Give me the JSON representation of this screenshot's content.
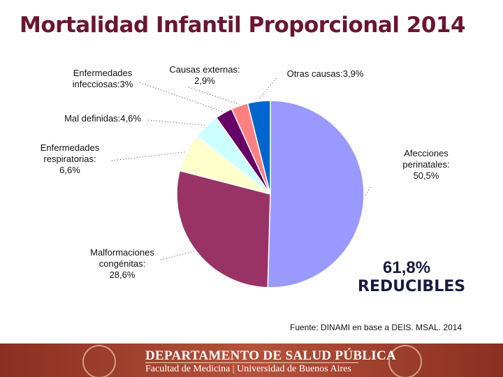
{
  "title": "Mortalidad Infantil Proporcional 2014",
  "chart_data": {
    "type": "pie",
    "values": [
      50.5,
      28.6,
      6.6,
      4.6,
      3,
      2.9,
      3.9
    ],
    "value_labels": [
      "Afecciones\nperinatales:\n50,5%",
      "Malformaciones\ncongénitas:\n28,6%",
      "Enfermedades\nrespiratorias:\n6,6%",
      "Mal definidas:4,6%",
      "Enfermedades\ninfecciosas:3%",
      "Causas externas:\n2,9%",
      "Otras causas:3,9%"
    ],
    "colors": [
      "#9999ff",
      "#993366",
      "#ffffcc",
      "#ccffff",
      "#660066",
      "#ff8080",
      "#0066cc"
    ],
    "annotation": {
      "value": "61,8%",
      "text": "REDUCIBLES"
    },
    "source": "Fuente: DINAMI en base a DEIS. MSAL. 2014"
  },
  "footer": {
    "title": "DEPARTAMENTO DE SALUD PÚBLICA",
    "subtitle": "Facultad de Medicina | Universidad de Buenos Aires"
  }
}
